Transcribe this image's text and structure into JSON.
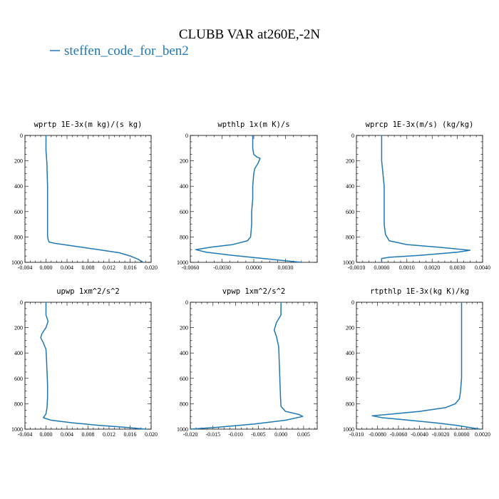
{
  "figure": {
    "title": "CLUBB VAR at260E,-2N",
    "legend": [
      {
        "label": "steffen_code_for_ben2",
        "color": "#1f77b4"
      }
    ]
  },
  "chart_data": [
    {
      "type": "line",
      "title": "wprtp   1E-3x(m kg)/(s kg)",
      "xlim": [
        -0.004,
        0.02
      ],
      "ylim": [
        1000,
        0
      ],
      "xticks": [
        -0.004,
        0.0,
        0.004,
        0.008,
        0.012,
        0.016,
        0.02
      ],
      "xtick_labels": [
        "-0.004",
        "0.000",
        "0.004",
        "0.008",
        "0.012",
        "0.016",
        "0.020"
      ],
      "yticks": [
        0,
        200,
        400,
        600,
        800,
        1000
      ],
      "ytick_labels": [
        "0",
        "200",
        "400",
        "600",
        "800",
        "1000"
      ],
      "series": [
        {
          "x": [
            0.0,
            0.0,
            0.0002,
            0.0002,
            0.0003,
            0.0003,
            0.0003,
            0.0003,
            0.0003,
            0.0004,
            0.0006,
            0.0016,
            0.005,
            0.01,
            0.014,
            0.016,
            0.0175,
            0.0185
          ],
          "y": [
            0,
            120,
            230,
            260,
            400,
            500,
            600,
            700,
            790,
            820,
            840,
            850,
            870,
            900,
            925,
            950,
            975,
            1000
          ]
        }
      ]
    },
    {
      "type": "line",
      "title": "wpthlp   1x(m K)/s",
      "xlim": [
        -0.006,
        0.006
      ],
      "ylim": [
        1000,
        0
      ],
      "xticks": [
        -0.006,
        -0.003,
        0.0,
        0.003
      ],
      "xtick_labels": [
        "-0.0060",
        "-0.0030",
        "0.0000",
        "0.0030"
      ],
      "yticks": [
        0,
        200,
        400,
        600,
        800,
        1000
      ],
      "ytick_labels": [
        "0",
        "200",
        "400",
        "600",
        "800",
        "1000"
      ],
      "series": [
        {
          "x": [
            -0.0001,
            -0.0001,
            0.0,
            0.0003,
            0.0006,
            0.0004,
            0.0001,
            0.0,
            -0.0001,
            -0.0001,
            -0.0002,
            -0.0002,
            -0.0003,
            -0.0006,
            -0.002,
            -0.004,
            -0.0055,
            -0.0045,
            -0.002,
            0.0015,
            0.0045
          ],
          "y": [
            0,
            100,
            150,
            170,
            180,
            220,
            260,
            300,
            400,
            500,
            600,
            700,
            800,
            830,
            860,
            880,
            900,
            920,
            945,
            975,
            1000
          ]
        }
      ]
    },
    {
      "type": "line",
      "title": "wprcp   1E-3x(m/s) (kg/kg)",
      "xlim": [
        -0.001,
        0.004
      ],
      "ylim": [
        1000,
        0
      ],
      "xticks": [
        -0.001,
        0.0,
        0.001,
        0.002,
        0.003,
        0.004
      ],
      "xtick_labels": [
        "-0.0010",
        "0.0000",
        "0.0010",
        "0.0020",
        "0.0030",
        "0.0040"
      ],
      "yticks": [
        0,
        200,
        400,
        600,
        800,
        1000
      ],
      "ytick_labels": [
        "0",
        "200",
        "400",
        "600",
        "800",
        "1000"
      ],
      "series": [
        {
          "x": [
            0.0,
            0.0,
            5e-05,
            0.0001,
            0.0001,
            0.0001,
            0.0001,
            0.00015,
            0.0003,
            0.001,
            0.0022,
            0.003,
            0.0035,
            0.003,
            0.0015,
            0.0003,
            0.0,
            0.0
          ],
          "y": [
            0,
            200,
            300,
            400,
            500,
            600,
            700,
            780,
            830,
            860,
            880,
            895,
            905,
            920,
            945,
            960,
            970,
            1000
          ]
        }
      ]
    },
    {
      "type": "line",
      "title": "upwp   1xm^2/s^2",
      "xlim": [
        -0.004,
        0.02
      ],
      "ylim": [
        1000,
        0
      ],
      "xticks": [
        -0.004,
        0.0,
        0.004,
        0.008,
        0.012,
        0.016,
        0.02
      ],
      "xtick_labels": [
        "-0.004",
        "0.000",
        "0.004",
        "0.008",
        "0.012",
        "0.016",
        "0.020"
      ],
      "yticks": [
        0,
        200,
        400,
        600,
        800,
        1000
      ],
      "ytick_labels": [
        "0",
        "200",
        "400",
        "600",
        "800",
        "1000"
      ],
      "series": [
        {
          "x": [
            0.0,
            0.0,
            0.0004,
            0.0,
            -0.0008,
            -0.001,
            -0.0005,
            0.0,
            0.0001,
            0.0002,
            0.0003,
            0.0003,
            0.0002,
            0.0,
            -0.0005,
            0.001,
            0.005,
            0.01,
            0.015,
            0.019
          ],
          "y": [
            0,
            100,
            150,
            200,
            250,
            280,
            320,
            370,
            450,
            550,
            650,
            750,
            830,
            880,
            910,
            930,
            950,
            970,
            985,
            1000
          ]
        }
      ]
    },
    {
      "type": "line",
      "title": "vpwp   1xm^2/s^2",
      "xlim": [
        -0.02,
        0.008
      ],
      "ylim": [
        1000,
        0
      ],
      "xticks": [
        -0.02,
        -0.015,
        -0.01,
        -0.005,
        0.0,
        0.005
      ],
      "xtick_labels": [
        "-0.020",
        "-0.015",
        "-0.010",
        "-0.005",
        "0.000",
        "0.005"
      ],
      "yticks": [
        0,
        200,
        400,
        600,
        800,
        1000
      ],
      "ytick_labels": [
        "0",
        "200",
        "400",
        "600",
        "800",
        "1000"
      ],
      "series": [
        {
          "x": [
            0.0,
            0.0,
            -0.001,
            -0.0015,
            -0.001,
            -0.0005,
            -0.0004,
            -0.0003,
            -0.0002,
            -0.0001,
            0.0,
            0.001,
            0.004,
            0.0048,
            0.001,
            -0.006,
            -0.014,
            -0.02
          ],
          "y": [
            0,
            100,
            160,
            220,
            270,
            350,
            450,
            550,
            650,
            750,
            820,
            860,
            885,
            900,
            930,
            960,
            985,
            1000
          ]
        }
      ]
    },
    {
      "type": "line",
      "title": "rtpthlp   1E-3x(kg K)/kg",
      "xlim": [
        -0.01,
        0.002
      ],
      "ylim": [
        1000,
        0
      ],
      "xticks": [
        -0.01,
        -0.008,
        -0.006,
        -0.004,
        -0.002,
        0.0,
        0.002
      ],
      "xtick_labels": [
        "-0.010",
        "-0.0080",
        "-0.0060",
        "-0.0040",
        "-0.0020",
        "0.0000",
        "0.0020"
      ],
      "yticks": [
        0,
        200,
        400,
        600,
        800,
        1000
      ],
      "ytick_labels": [
        "0",
        "200",
        "400",
        "600",
        "800",
        "1000"
      ],
      "series": [
        {
          "x": [
            0.0,
            0.0,
            0.0,
            0.0,
            -0.0001,
            -0.0002,
            -0.0006,
            -0.0015,
            -0.004,
            -0.0065,
            -0.0085,
            -0.0075,
            -0.005,
            -0.0025,
            -0.0005,
            0.001,
            0.0018
          ],
          "y": [
            0,
            200,
            400,
            600,
            700,
            760,
            800,
            830,
            860,
            880,
            895,
            910,
            930,
            950,
            970,
            990,
            1000
          ]
        }
      ]
    }
  ]
}
